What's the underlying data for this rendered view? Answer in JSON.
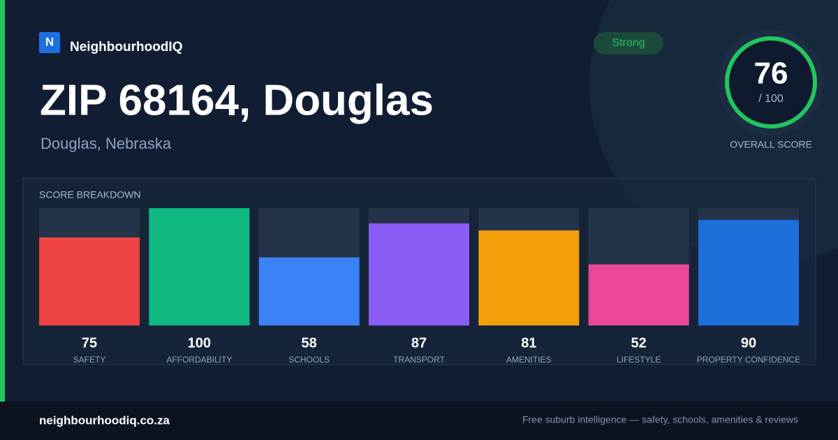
{
  "brand": {
    "logo_letter": "N",
    "name": "NeighbourhoodIQ"
  },
  "badge": "Strong",
  "title": "ZIP 68164, Douglas",
  "subtitle": "Douglas, Nebraska",
  "overall": {
    "score": 76,
    "max_label": "/ 100",
    "label": "OVERALL SCORE"
  },
  "chart_data": {
    "type": "bar",
    "title": "SCORE BREAKDOWN",
    "categories": [
      "SAFETY",
      "AFFORDABILITY",
      "SCHOOLS",
      "TRANSPORT",
      "AMENITIES",
      "LIFESTYLE",
      "PROPERTY CONFIDENCE"
    ],
    "values": [
      75,
      100,
      58,
      87,
      81,
      52,
      90
    ],
    "colors": [
      "#ef4444",
      "#10b981",
      "#3b82f6",
      "#8b5cf6",
      "#f59e0b",
      "#ec4899",
      "#1d6fdc"
    ],
    "ylim": [
      0,
      100
    ]
  },
  "footer": {
    "site": "neighbourhoodiq.co.za",
    "tagline": "Free suburb intelligence — safety, schools, amenities & reviews"
  }
}
